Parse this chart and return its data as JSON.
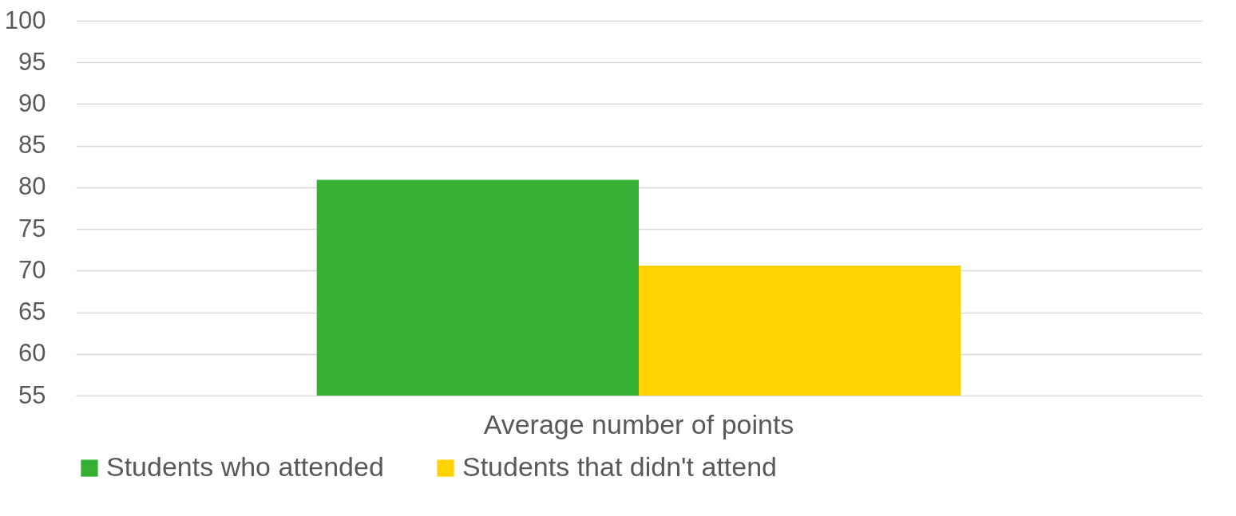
{
  "chart_data": {
    "type": "bar",
    "categories": [
      "Average number of points"
    ],
    "series": [
      {
        "name": "Students who attended",
        "color": "#35b035",
        "values": [
          80.9
        ]
      },
      {
        "name": "Students that didn't attend",
        "color": "#ffd200",
        "values": [
          70.6
        ]
      }
    ],
    "ylim": [
      55,
      100
    ],
    "yticks": [
      55,
      60,
      65,
      70,
      75,
      80,
      85,
      90,
      95,
      100
    ],
    "grid": "y",
    "legend": "bottom"
  }
}
